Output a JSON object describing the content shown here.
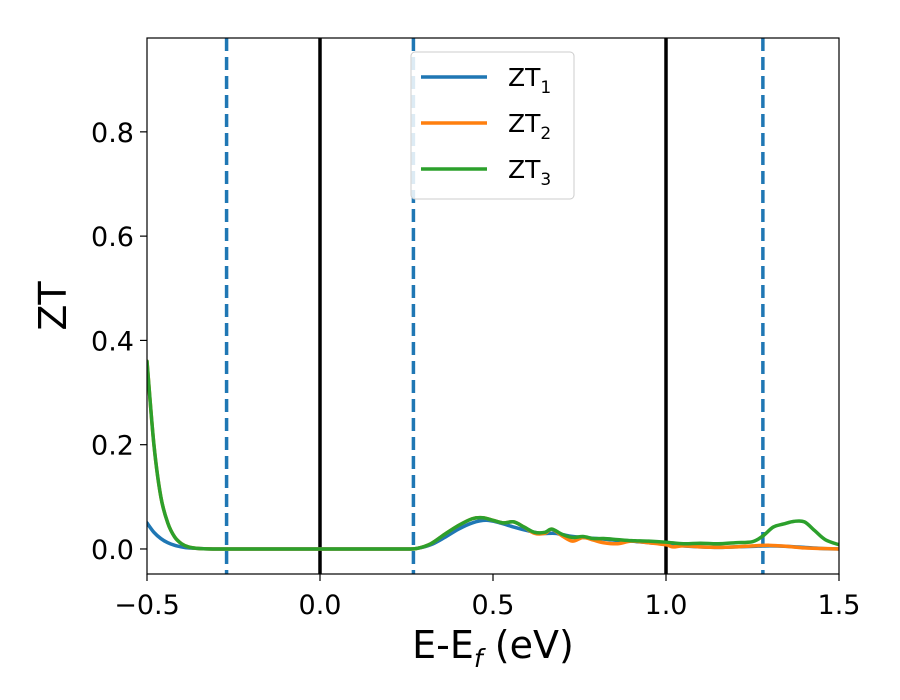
{
  "chart_data": {
    "type": "line",
    "xlabel": {
      "main": "E-E",
      "sub": "f",
      "unit": " (eV)"
    },
    "ylabel": "ZT",
    "xlim": [
      -0.5,
      1.5
    ],
    "ylim": [
      -0.048,
      0.98
    ],
    "xticks": [
      -0.5,
      0.0,
      0.5,
      1.0,
      1.5
    ],
    "xtick_labels": [
      "−0.5",
      "0.0",
      "0.5",
      "1.0",
      "1.5"
    ],
    "yticks": [
      0.0,
      0.2,
      0.4,
      0.6,
      0.8
    ],
    "ytick_labels": [
      "0.0",
      "0.2",
      "0.4",
      "0.6",
      "0.8"
    ],
    "grid": false,
    "legend_position": "top-center",
    "vlines_solid": [
      0.0,
      1.0
    ],
    "vlines_dashed": [
      -0.27,
      0.27,
      1.28
    ],
    "vline_solid_color": "#000000",
    "vline_dashed_color": "#1f77b4",
    "series": [
      {
        "name": "ZT",
        "sub": "1",
        "color": "#1f77b4",
        "x": [
          -0.5,
          -0.48,
          -0.46,
          -0.44,
          -0.42,
          -0.4,
          -0.38,
          -0.35,
          -0.3,
          -0.25,
          -0.2,
          0.0,
          0.2,
          0.25,
          0.28,
          0.32,
          0.36,
          0.4,
          0.44,
          0.48,
          0.52,
          0.56,
          0.6,
          0.64,
          0.68,
          0.72,
          0.76,
          0.8,
          0.85,
          0.9,
          0.95,
          1.0,
          1.05,
          1.1,
          1.15,
          1.2,
          1.25,
          1.3,
          1.35,
          1.4,
          1.45,
          1.5
        ],
        "y": [
          0.05,
          0.032,
          0.02,
          0.012,
          0.007,
          0.004,
          0.002,
          0.001,
          0.0,
          0.0,
          0.0,
          0.0,
          0.0,
          0.0,
          0.001,
          0.008,
          0.022,
          0.038,
          0.05,
          0.055,
          0.05,
          0.042,
          0.035,
          0.03,
          0.03,
          0.025,
          0.022,
          0.02,
          0.017,
          0.015,
          0.012,
          0.01,
          0.006,
          0.004,
          0.003,
          0.004,
          0.005,
          0.006,
          0.005,
          0.003,
          0.001,
          0.0
        ]
      },
      {
        "name": "ZT",
        "sub": "2",
        "color": "#ff7f0e",
        "x": [
          -0.5,
          -0.48,
          -0.46,
          -0.44,
          -0.42,
          -0.4,
          -0.38,
          -0.35,
          -0.3,
          -0.25,
          -0.2,
          0.0,
          0.2,
          0.25,
          0.28,
          0.32,
          0.36,
          0.4,
          0.44,
          0.47,
          0.5,
          0.53,
          0.56,
          0.59,
          0.62,
          0.65,
          0.67,
          0.7,
          0.73,
          0.76,
          0.79,
          0.82,
          0.86,
          0.9,
          0.95,
          1.0,
          1.02,
          1.05,
          1.1,
          1.15,
          1.2,
          1.25,
          1.3,
          1.35,
          1.4,
          1.45,
          1.5
        ],
        "y": [
          0.36,
          0.2,
          0.1,
          0.05,
          0.023,
          0.01,
          0.004,
          0.001,
          0.0,
          0.0,
          0.0,
          0.0,
          0.0,
          0.0,
          0.001,
          0.01,
          0.028,
          0.045,
          0.058,
          0.06,
          0.055,
          0.05,
          0.052,
          0.042,
          0.03,
          0.03,
          0.038,
          0.025,
          0.015,
          0.022,
          0.017,
          0.012,
          0.01,
          0.015,
          0.012,
          0.008,
          0.004,
          0.006,
          0.004,
          0.003,
          0.004,
          0.006,
          0.007,
          0.005,
          0.002,
          0.001,
          0.0
        ]
      },
      {
        "name": "ZT",
        "sub": "3",
        "color": "#2ca02c",
        "x": [
          -0.5,
          -0.48,
          -0.46,
          -0.44,
          -0.42,
          -0.4,
          -0.38,
          -0.35,
          -0.3,
          -0.25,
          -0.2,
          0.0,
          0.2,
          0.25,
          0.28,
          0.32,
          0.36,
          0.4,
          0.44,
          0.47,
          0.5,
          0.53,
          0.56,
          0.59,
          0.62,
          0.65,
          0.67,
          0.7,
          0.73,
          0.76,
          0.79,
          0.82,
          0.86,
          0.9,
          0.95,
          1.0,
          1.05,
          1.1,
          1.15,
          1.2,
          1.25,
          1.28,
          1.31,
          1.34,
          1.37,
          1.4,
          1.43,
          1.46,
          1.5
        ],
        "y": [
          0.36,
          0.2,
          0.1,
          0.05,
          0.023,
          0.01,
          0.004,
          0.001,
          0.0,
          0.0,
          0.0,
          0.0,
          0.0,
          0.0,
          0.001,
          0.01,
          0.028,
          0.045,
          0.058,
          0.06,
          0.055,
          0.05,
          0.052,
          0.042,
          0.032,
          0.032,
          0.038,
          0.028,
          0.022,
          0.024,
          0.02,
          0.02,
          0.018,
          0.016,
          0.015,
          0.013,
          0.01,
          0.011,
          0.01,
          0.012,
          0.014,
          0.025,
          0.042,
          0.048,
          0.053,
          0.052,
          0.035,
          0.018,
          0.008
        ]
      }
    ]
  }
}
